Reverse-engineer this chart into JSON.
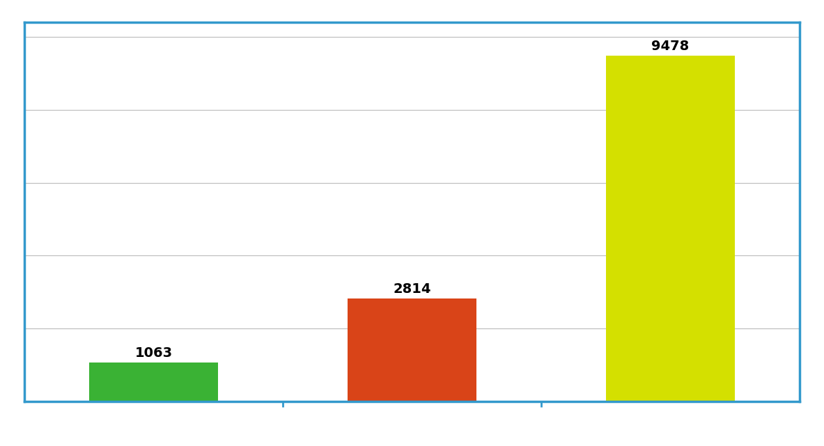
{
  "categories": [
    "",
    "",
    ""
  ],
  "values": [
    1063,
    2814,
    9478
  ],
  "bar_colors": [
    "#3ab234",
    "#d94418",
    "#d4e000"
  ],
  "bar_labels": [
    "1063",
    "2814",
    "9478"
  ],
  "ylim": [
    0,
    10400
  ],
  "yticks": [
    0,
    2000,
    4000,
    6000,
    8000,
    10000
  ],
  "background_color": "#ffffff",
  "spine_color": "#3399cc",
  "grid_color": "#c0c0c0",
  "label_fontsize": 14,
  "label_fontweight": "bold",
  "bar_width": 0.5
}
